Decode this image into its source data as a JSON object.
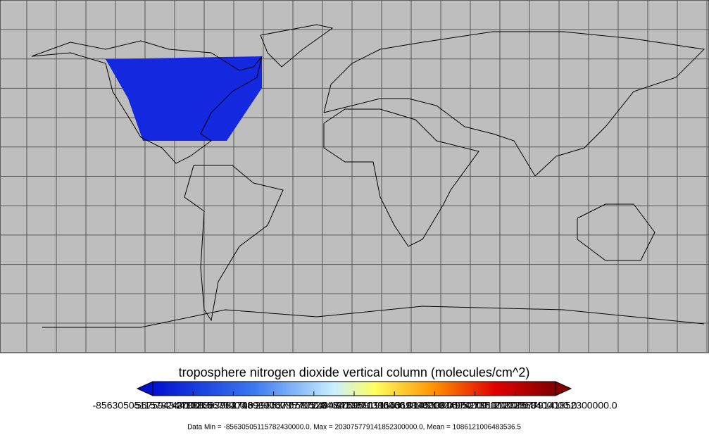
{
  "colorbar": {
    "title": "troposphere nitrogen dioxide vertical column (molecules/cm^2)",
    "tick_labels": [
      "-85630505115782430000.0",
      "-56759434410265670000.0",
      "-27888363704748900000.0",
      "982706999767857000.0",
      "29853777705284620000.0",
      "58724848410801380000.0",
      "87595919116318140000.0",
      "116466989821834900000.0",
      "145338060527351700000.0",
      "174209131232868400000.0",
      "203075779141852300000.0"
    ]
  },
  "stats": "Data Min = -85630505115782430000.0, Max = 203075779141852300000.0, Mean = 1086121006483536.5"
}
